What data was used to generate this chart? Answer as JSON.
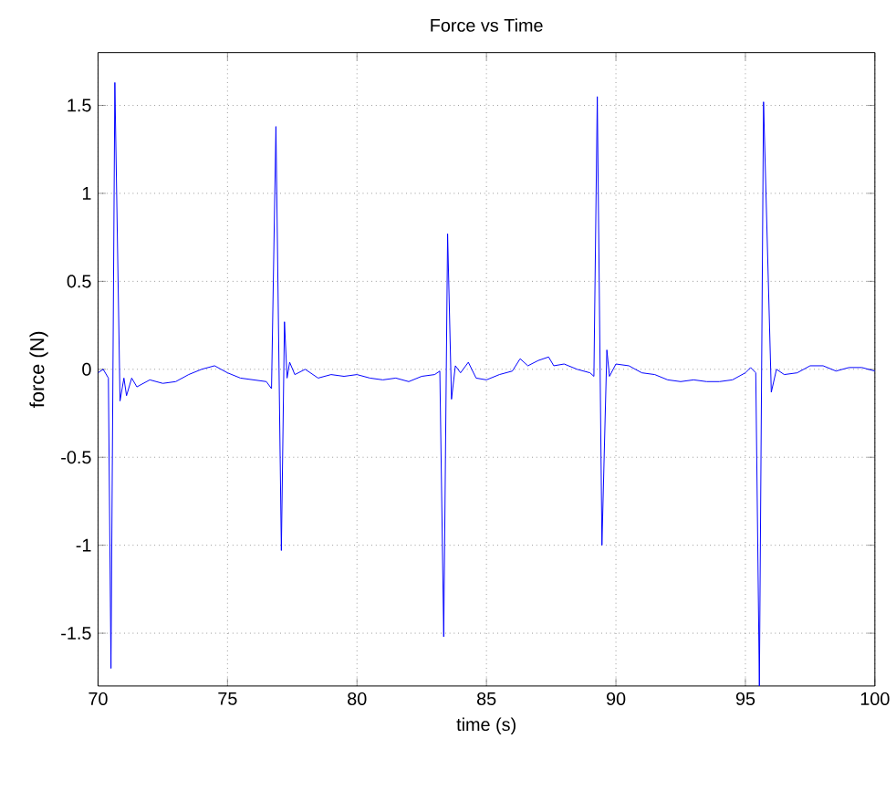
{
  "chart_data": {
    "type": "line",
    "title": "Force vs Time",
    "xlabel": "time (s)",
    "ylabel": "force (N)",
    "xlim": [
      70,
      100
    ],
    "ylim": [
      -1.8,
      1.8
    ],
    "xticks": [
      70,
      75,
      80,
      85,
      90,
      95,
      100
    ],
    "yticks": [
      -1.5,
      -1,
      -0.5,
      0,
      0.5,
      1,
      1.5
    ],
    "grid": true,
    "line_style": "solid",
    "marker": "none",
    "x": [
      70.0,
      70.2,
      70.4,
      70.5,
      70.65,
      70.85,
      71.0,
      71.1,
      71.3,
      71.5,
      72.0,
      72.5,
      73.0,
      73.5,
      74.0,
      74.5,
      75.0,
      75.5,
      76.0,
      76.5,
      76.7,
      76.87,
      77.08,
      77.2,
      77.3,
      77.4,
      77.6,
      78.0,
      78.5,
      79.0,
      79.5,
      80.0,
      80.5,
      81.0,
      81.5,
      82.0,
      82.5,
      83.0,
      83.2,
      83.35,
      83.5,
      83.65,
      83.8,
      84.0,
      84.3,
      84.6,
      85.0,
      85.5,
      86.0,
      86.3,
      86.6,
      87.0,
      87.4,
      87.6,
      88.0,
      88.5,
      89.0,
      89.15,
      89.28,
      89.46,
      89.65,
      89.75,
      90.0,
      90.5,
      91.0,
      91.5,
      92.0,
      92.5,
      93.0,
      93.5,
      94.0,
      94.5,
      95.0,
      95.2,
      95.4,
      95.54,
      95.7,
      96.0,
      96.2,
      96.5,
      97.0,
      97.5,
      98.0,
      98.5,
      99.0,
      99.5,
      100.0
    ],
    "series": [
      {
        "color": "#0000ff",
        "values": [
          -0.02,
          0.0,
          -0.05,
          -1.7,
          1.63,
          -0.18,
          -0.05,
          -0.15,
          -0.05,
          -0.1,
          -0.06,
          -0.08,
          -0.07,
          -0.03,
          0.0,
          0.02,
          -0.02,
          -0.05,
          -0.06,
          -0.07,
          -0.11,
          1.38,
          -1.03,
          0.27,
          -0.05,
          0.04,
          -0.03,
          0.0,
          -0.05,
          -0.03,
          -0.04,
          -0.03,
          -0.05,
          -0.06,
          -0.05,
          -0.07,
          -0.04,
          -0.03,
          -0.01,
          -1.52,
          0.77,
          -0.17,
          0.02,
          -0.02,
          0.04,
          -0.05,
          -0.06,
          -0.03,
          -0.01,
          0.06,
          0.02,
          0.05,
          0.07,
          0.02,
          0.03,
          0.0,
          -0.02,
          -0.04,
          1.55,
          -1.0,
          0.11,
          -0.04,
          0.03,
          0.02,
          -0.02,
          -0.03,
          -0.06,
          -0.07,
          -0.06,
          -0.07,
          -0.07,
          -0.06,
          -0.02,
          0.01,
          -0.02,
          -1.8,
          1.52,
          -0.13,
          0.0,
          -0.03,
          -0.02,
          0.02,
          0.02,
          -0.01,
          0.01,
          0.01,
          -0.01
        ]
      }
    ]
  }
}
